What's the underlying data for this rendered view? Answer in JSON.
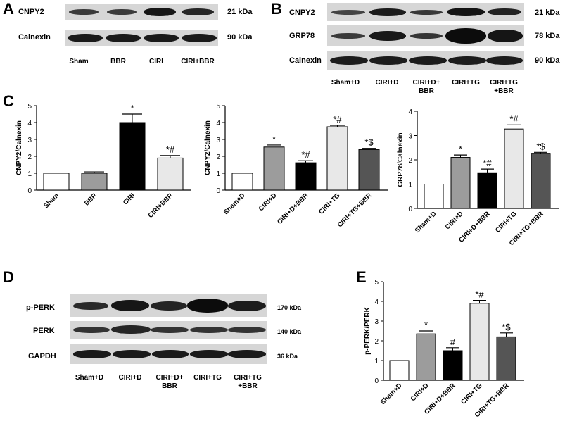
{
  "panel_letters": {
    "A": "A",
    "B": "B",
    "C": "C",
    "D": "D",
    "E": "E"
  },
  "blot_a": {
    "rows": [
      {
        "protein": "CNPY2",
        "mw": "21 kDa"
      },
      {
        "protein": "Calnexin",
        "mw": "90 kDa"
      }
    ],
    "lanes": [
      "Sham",
      "BBR",
      "CIRI",
      "CIRI+BBR"
    ]
  },
  "blot_b": {
    "rows": [
      {
        "protein": "CNPY2",
        "mw": "21 kDa"
      },
      {
        "protein": "GRP78",
        "mw": "78 kDa"
      },
      {
        "protein": "Calnexin",
        "mw": "90 kDa"
      }
    ],
    "lanes": [
      [
        "Sham+D"
      ],
      [
        "CIRI+D"
      ],
      [
        "CIRI+D+",
        "BBR"
      ],
      [
        "CIRI+TG"
      ],
      [
        "CIRI+TG",
        "+BBR"
      ]
    ]
  },
  "blot_d": {
    "rows": [
      {
        "protein": "p-PERK",
        "mw": "170 kDa"
      },
      {
        "protein": "PERK",
        "mw": "140 kDa"
      },
      {
        "protein": "GAPDH",
        "mw": "36 kDa"
      }
    ],
    "lanes": [
      [
        "Sham+D"
      ],
      [
        "CIRI+D"
      ],
      [
        "CIRI+D+",
        "BBR"
      ],
      [
        "CIRI+TG"
      ],
      [
        "CIRI+TG",
        "+BBR"
      ]
    ]
  },
  "colors": {
    "white": "#ffffff",
    "gray": "#9c9c9c",
    "black": "#000000",
    "lightgray": "#e8e8e8",
    "darkgray": "#555555"
  },
  "chart_data": [
    {
      "type": "bar",
      "categories": [
        "Sham",
        "BBR",
        "CIRI",
        "CIRI+BBR"
      ],
      "values": [
        1.0,
        1.0,
        4.0,
        1.9
      ],
      "errors": [
        0,
        0.08,
        0.5,
        0.15
      ],
      "annotations": [
        "",
        "",
        "*",
        "*#"
      ],
      "bar_colors": [
        "white",
        "gray",
        "black",
        "lightgray"
      ],
      "ylabel": "CNPY2/Calnexin",
      "ylim": [
        0,
        5
      ],
      "yticks": [
        "0",
        "1",
        "2",
        "3",
        "4",
        "5"
      ],
      "grid": false
    },
    {
      "type": "bar",
      "categories": [
        "Sham+D",
        "CIRI+D",
        "CIRI+D+BBR",
        "CIRI+TG",
        "CIRI+TG+BBR"
      ],
      "values": [
        1.0,
        2.55,
        1.62,
        3.75,
        2.4
      ],
      "errors": [
        0,
        0.12,
        0.12,
        0.08,
        0.07
      ],
      "annotations": [
        "",
        "*",
        "*#",
        "*#",
        "*$"
      ],
      "bar_colors": [
        "white",
        "gray",
        "black",
        "lightgray",
        "darkgray"
      ],
      "ylabel": "CNPY2/Calnexin",
      "ylim": [
        0,
        5
      ],
      "yticks": [
        "0",
        "1",
        "2",
        "3",
        "4",
        "5"
      ],
      "grid": false
    },
    {
      "type": "bar",
      "categories": [
        "Sham+D",
        "CIRI+D",
        "CIRI+D+BBR",
        "CIRI+TG",
        "CIRI+TG+BBR"
      ],
      "values": [
        1.0,
        2.1,
        1.47,
        3.27,
        2.27
      ],
      "errors": [
        0,
        0.1,
        0.15,
        0.17,
        0.04
      ],
      "annotations": [
        "",
        "*",
        "*#",
        "*#",
        "*$"
      ],
      "bar_colors": [
        "white",
        "gray",
        "black",
        "lightgray",
        "darkgray"
      ],
      "ylabel": "GRP78/Calnexin",
      "ylim": [
        0,
        4
      ],
      "yticks": [
        "0",
        "1",
        "2",
        "3",
        "4"
      ],
      "grid": false
    },
    {
      "type": "bar",
      "categories": [
        "Sham+D",
        "CIRI+D",
        "CIRI+D+BBR",
        "CIRI+TG",
        "CIRI+TG+BBR"
      ],
      "values": [
        1.0,
        2.35,
        1.5,
        3.9,
        2.2
      ],
      "errors": [
        0,
        0.15,
        0.15,
        0.15,
        0.2
      ],
      "annotations": [
        "",
        "*",
        "#",
        "*#",
        "*$"
      ],
      "bar_colors": [
        "white",
        "gray",
        "black",
        "lightgray",
        "darkgray"
      ],
      "ylabel": "p-PERK/PERK",
      "ylim": [
        0,
        5
      ],
      "yticks": [
        "0",
        "1",
        "2",
        "3",
        "4",
        "5"
      ],
      "grid": false
    }
  ]
}
